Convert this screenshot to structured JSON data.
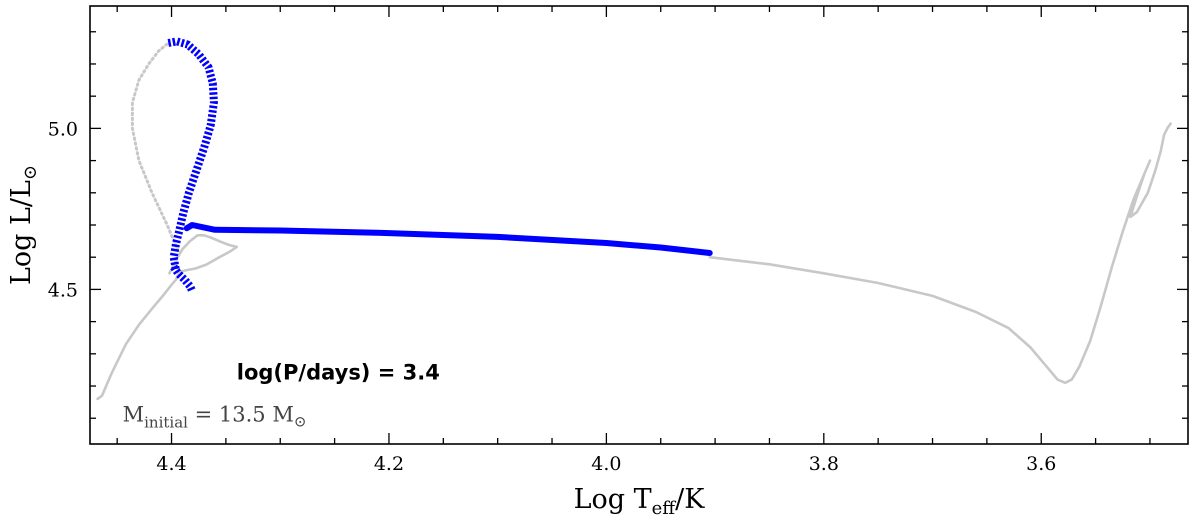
{
  "chart_data": {
    "type": "line",
    "title": "",
    "xlabel": {
      "main": "Log T",
      "sub": "eff",
      "suffix": "/K"
    },
    "ylabel": {
      "main": "Log L/L",
      "sub": "⊙"
    },
    "xlim": [
      4.475,
      3.465
    ],
    "ylim": [
      4.02,
      5.38
    ],
    "x_reversed": true,
    "x_ticks_major": [
      4.4,
      4.2,
      4.0,
      3.8,
      3.6
    ],
    "x_tick_labels": [
      "4.4",
      "4.2",
      "4.0",
      "3.8",
      "3.6"
    ],
    "y_ticks_major": [
      4.5,
      5.0
    ],
    "y_tick_labels": [
      "4.5",
      "5.0"
    ],
    "grid": false,
    "annotations": [
      {
        "text": "log(P/days) = 3.4",
        "x": 4.34,
        "y": 4.22
      },
      {
        "text_main": "M",
        "text_sub": "initial",
        "text_rest": " = 13.5 M",
        "text_rest_sub": "⊙",
        "x": 4.445,
        "y": 4.09
      }
    ],
    "series": [
      {
        "color": "#c8c8c8",
        "style": "solid",
        "x": [
          4.468,
          4.464,
          4.455,
          4.442,
          4.43,
          4.418,
          4.408,
          4.401,
          4.396,
          4.394
        ],
        "y": [
          4.16,
          4.17,
          4.24,
          4.33,
          4.39,
          4.44,
          4.48,
          4.51,
          4.53,
          4.545
        ]
      },
      {
        "color": "#c8c8c8",
        "style": "solid",
        "x": [
          4.402,
          4.396,
          4.39,
          4.383,
          4.376,
          4.37,
          4.363,
          4.355,
          4.347,
          4.34,
          4.346,
          4.356,
          4.368,
          4.378,
          4.386,
          4.391,
          4.394
        ],
        "y": [
          4.55,
          4.59,
          4.625,
          4.65,
          4.668,
          4.668,
          4.66,
          4.648,
          4.638,
          4.632,
          4.618,
          4.6,
          4.577,
          4.565,
          4.56,
          4.556,
          4.553
        ]
      },
      {
        "color": "#c8c8c8",
        "style": "dotted",
        "x": [
          4.394,
          4.404,
          4.418,
          4.43,
          4.436,
          4.436,
          4.43,
          4.421,
          4.412,
          4.404
        ],
        "y": [
          4.62,
          4.7,
          4.8,
          4.9,
          5.0,
          5.08,
          5.15,
          5.2,
          5.24,
          5.262
        ]
      },
      {
        "color": "#0000ff",
        "style": "hatched",
        "x": [
          4.403,
          4.395,
          4.385,
          4.375,
          4.366,
          4.362,
          4.361,
          4.364,
          4.37,
          4.377,
          4.384,
          4.389,
          4.393,
          4.396,
          4.398,
          4.396
        ],
        "y": [
          5.265,
          5.27,
          5.26,
          5.23,
          5.19,
          5.14,
          5.08,
          5.01,
          4.94,
          4.87,
          4.8,
          4.74,
          4.68,
          4.64,
          4.6,
          4.56
        ]
      },
      {
        "color": "#0000ff",
        "style": "hatched",
        "x": [
          4.398,
          4.394,
          4.388,
          4.383,
          4.381
        ],
        "y": [
          4.57,
          4.55,
          4.53,
          4.51,
          4.495
        ]
      },
      {
        "color": "#0000ff",
        "style": "solid-thick",
        "x": [
          4.386,
          4.381,
          4.36,
          4.3,
          4.2,
          4.1,
          4.0,
          3.95,
          3.905
        ],
        "y": [
          4.69,
          4.7,
          4.685,
          4.683,
          4.675,
          4.663,
          4.644,
          4.63,
          4.613
        ]
      },
      {
        "color": "#c8c8c8",
        "style": "solid",
        "x": [
          3.905,
          3.85,
          3.8,
          3.75,
          3.7,
          3.66,
          3.63,
          3.61,
          3.595,
          3.585,
          3.578,
          3.572,
          3.565,
          3.555,
          3.545,
          3.535,
          3.525,
          3.515,
          3.505,
          3.5,
          3.505,
          3.512,
          3.518,
          3.512,
          3.502,
          3.495,
          3.49,
          3.487,
          3.484,
          3.481
        ],
        "y": [
          4.6,
          4.578,
          4.55,
          4.52,
          4.48,
          4.43,
          4.38,
          4.32,
          4.26,
          4.22,
          4.21,
          4.22,
          4.26,
          4.34,
          4.45,
          4.57,
          4.68,
          4.78,
          4.86,
          4.9,
          4.86,
          4.79,
          4.725,
          4.74,
          4.8,
          4.87,
          4.93,
          4.98,
          5.0,
          5.015
        ]
      }
    ]
  }
}
